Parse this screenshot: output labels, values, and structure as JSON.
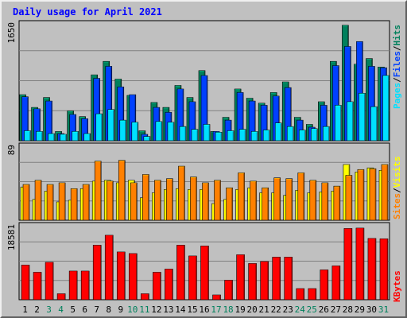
{
  "chart_data": {
    "type": "bar",
    "title": "Daily usage for April 2021",
    "categories": [
      "1",
      "2",
      "3",
      "4",
      "5",
      "6",
      "7",
      "8",
      "9",
      "10",
      "11",
      "12",
      "13",
      "14",
      "15",
      "16",
      "17",
      "18",
      "19",
      "20",
      "21",
      "22",
      "23",
      "24",
      "25",
      "26",
      "27",
      "28",
      "29",
      "30",
      "31"
    ],
    "weekend_days": [
      "3",
      "4",
      "10",
      "11",
      "17",
      "18",
      "24",
      "25",
      "31"
    ],
    "panels": [
      {
        "id": "hits-files-pages",
        "max_label": "1650",
        "ylim": [
          0,
          1650
        ],
        "series": [
          {
            "name": "Hits",
            "color": "#00805c",
            "values": [
              650,
              470,
              610,
              130,
              420,
              340,
              930,
              1120,
              870,
              640,
              140,
              540,
              470,
              780,
              610,
              990,
              130,
              330,
              730,
              600,
              530,
              680,
              830,
              330,
              230,
              550,
              1120,
              1630,
              1080,
              1160,
              1040
            ]
          },
          {
            "name": "Files",
            "color": "#0040ff",
            "values": [
              620,
              450,
              560,
              100,
              370,
              310,
              880,
              1050,
              760,
              650,
              90,
              470,
              400,
              730,
              550,
              920,
              130,
              290,
              680,
              560,
              500,
              630,
              750,
              290,
              190,
              500,
              1060,
              1330,
              1400,
              1050,
              1030
            ]
          },
          {
            "name": "Pages",
            "color": "#00e0ff",
            "values": [
              140,
              130,
              100,
              90,
              130,
              100,
              380,
              440,
              290,
              260,
              60,
              270,
              260,
              200,
              160,
              230,
              120,
              140,
              160,
              130,
              150,
              250,
              200,
              150,
              170,
              200,
              500,
              550,
              670,
              480,
              920
            ]
          }
        ]
      },
      {
        "id": "visits-sites",
        "max_label": "89",
        "ylim": [
          0,
          89
        ],
        "series": [
          {
            "name": "Visits",
            "color": "#ffff00",
            "values": [
              40,
              25,
              35,
              22,
              24,
              38,
              47,
              48,
              45,
              48,
              27,
              33,
              37,
              38,
              37,
              37,
              20,
              25,
              37,
              39,
              33,
              33,
              30,
              36,
              33,
              34,
              35,
              67,
              58,
              63,
              60
            ]
          },
          {
            "name": "Sites",
            "color": "#ff8000",
            "values": [
              43,
              48,
              43,
              45,
              38,
              43,
              71,
              47,
              72,
              45,
              55,
              48,
              50,
              65,
              52,
              45,
              48,
              39,
              57,
              47,
              39,
              51,
              50,
              57,
              48,
              45,
              41,
              54,
              61,
              62,
              67
            ]
          }
        ]
      },
      {
        "id": "kbytes",
        "max_label": "18581",
        "ylim": [
          0,
          18581
        ],
        "series": [
          {
            "name": "KBytes",
            "color": "#ff0000",
            "values": [
              8700,
              6900,
              9400,
              1500,
              7200,
              7200,
              13700,
              16200,
              12000,
              11600,
              1500,
              6900,
              7700,
              13700,
              11000,
              13500,
              1200,
              4900,
              11300,
              9100,
              9600,
              10700,
              10700,
              2800,
              2800,
              7500,
              8500,
              17900,
              18000,
              15400,
              15300
            ]
          }
        ]
      }
    ],
    "legend_right": [
      {
        "panel": "hits-files-pages",
        "items": [
          "Pages",
          "Files",
          "Hits"
        ],
        "colors": [
          "#00e0ff",
          "#0040ff",
          "#00805c"
        ]
      },
      {
        "panel": "visits-sites",
        "items": [
          "Sites",
          "Visits"
        ],
        "colors": [
          "#ff8000",
          "#ffff00"
        ]
      },
      {
        "panel": "kbytes",
        "items": [
          "KBytes"
        ],
        "colors": [
          "#ff0000"
        ]
      }
    ],
    "separator": "/",
    "colors": {
      "background": "#c0c0c0",
      "panel": "#c0c0c0",
      "grid": "#808080",
      "title": "#0000ff",
      "label_weekday": "#000000",
      "label_weekend": "#00805c"
    },
    "grid": true
  }
}
